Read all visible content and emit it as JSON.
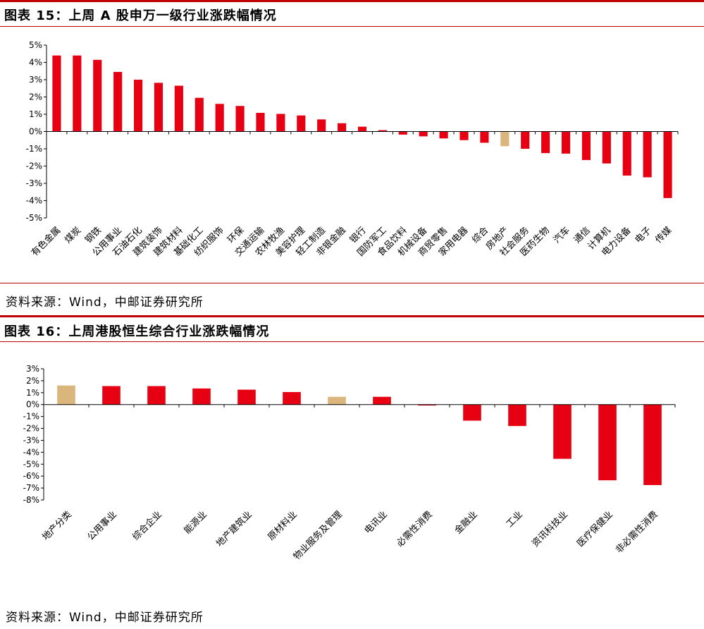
{
  "colors": {
    "rule": "#c00000",
    "bar_red": "#e60012",
    "bar_tan": "#dbb67c",
    "axis": "#000000"
  },
  "chart_data": [
    {
      "type": "bar",
      "title": "图表 15：上周 A 股申万一级行业涨跌幅情况",
      "source": "资料来源：Wind，中邮证券研究所",
      "xlabel": "",
      "ylabel": "",
      "ylim": [
        -5,
        5
      ],
      "yticks": [
        "5%",
        "4%",
        "3%",
        "2%",
        "1%",
        "0%",
        "-1%",
        "-2%",
        "-3%",
        "-4%",
        "-5%"
      ],
      "categories": [
        "有色金属",
        "煤炭",
        "钢铁",
        "公用事业",
        "石油石化",
        "建筑装饰",
        "建筑材料",
        "基础化工",
        "纺织服饰",
        "环保",
        "交通运输",
        "农林牧渔",
        "美容护理",
        "轻工制造",
        "非银金融",
        "银行",
        "国防军工",
        "食品饮料",
        "机械设备",
        "商贸零售",
        "家用电器",
        "综合",
        "房地产",
        "社会服务",
        "医药生物",
        "汽车",
        "通信",
        "计算机",
        "电力设备",
        "电子",
        "传媒"
      ],
      "values": [
        4.4,
        4.4,
        4.15,
        3.45,
        3.0,
        2.82,
        2.65,
        1.95,
        1.6,
        1.48,
        1.08,
        1.02,
        0.93,
        0.7,
        0.48,
        0.28,
        0.08,
        -0.18,
        -0.28,
        -0.4,
        -0.5,
        -0.65,
        -0.85,
        -1.0,
        -1.25,
        -1.28,
        -1.65,
        -1.85,
        -2.55,
        -2.65,
        -3.85
      ],
      "highlight": [
        "房地产"
      ]
    },
    {
      "type": "bar",
      "title": "图表 16：上周港股恒生综合行业涨跌幅情况",
      "source": "资料来源：Wind，中邮证券研究所",
      "xlabel": "",
      "ylabel": "",
      "ylim": [
        -8,
        3
      ],
      "yticks": [
        "3%",
        "2%",
        "1%",
        "0%",
        "-1%",
        "-2%",
        "-3%",
        "-4%",
        "-5%",
        "-6%",
        "-7%",
        "-8%"
      ],
      "categories": [
        "地产分类",
        "公用事业",
        "综合企业",
        "能源业",
        "地产建筑业",
        "原材料业",
        "物业服务及管理",
        "电讯业",
        "必需性消费",
        "金融业",
        "工业",
        "资讯科技业",
        "医疗保健业",
        "非必需性消费"
      ],
      "values": [
        1.6,
        1.55,
        1.55,
        1.35,
        1.25,
        1.05,
        0.65,
        0.65,
        -0.08,
        -1.35,
        -1.8,
        -4.55,
        -6.35,
        -6.75
      ],
      "highlight": [
        "地产分类",
        "物业服务及管理"
      ]
    }
  ]
}
